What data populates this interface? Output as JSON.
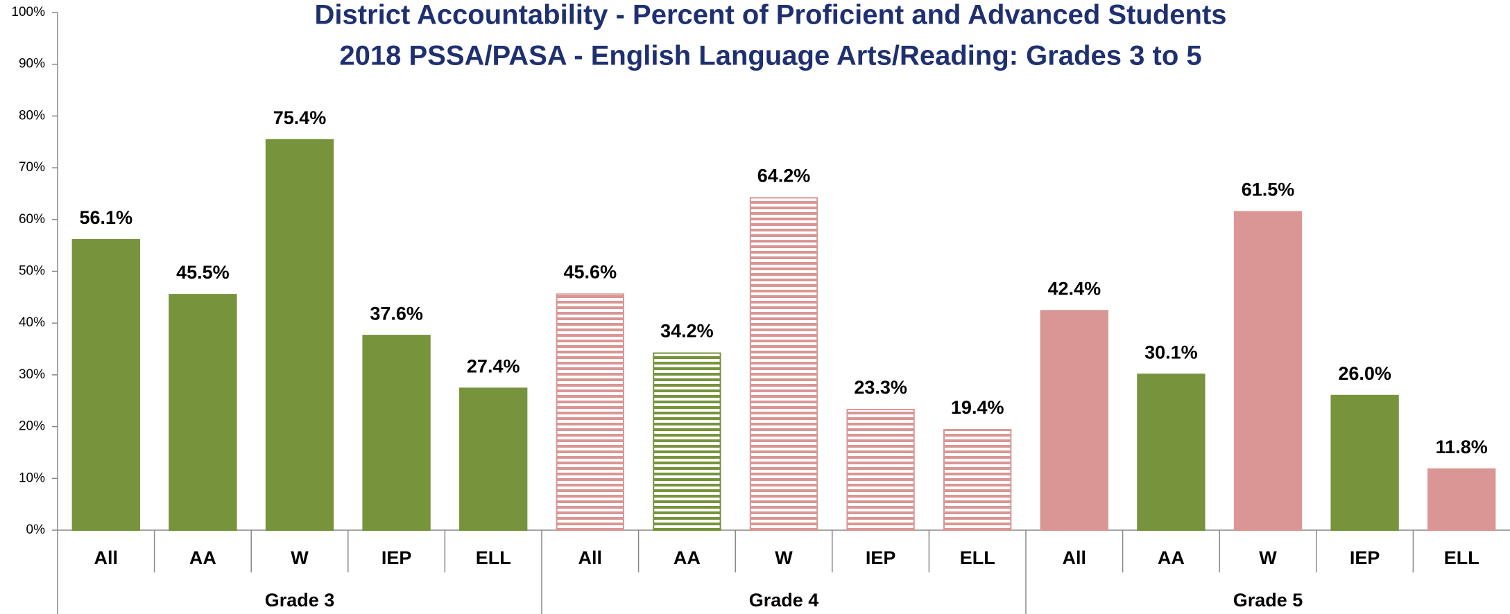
{
  "chart_data": {
    "type": "bar",
    "title": "District Accountability - Percent of Proficient and Advanced Students",
    "subtitle": "2018 PSSA/PASA -  English Language Arts/Reading: Grades 3 to 5",
    "groups": [
      "Grade 3",
      "Grade 4",
      "Grade 5"
    ],
    "categories": [
      "All",
      "AA",
      "W",
      "IEP",
      "ELL",
      "All",
      "AA",
      "W",
      "IEP",
      "ELL",
      "All",
      "AA",
      "W",
      "IEP",
      "ELL"
    ],
    "values": [
      56.1,
      45.5,
      75.4,
      37.6,
      27.4,
      45.6,
      34.2,
      64.2,
      23.3,
      19.4,
      42.4,
      30.1,
      61.5,
      26.0,
      11.8
    ],
    "value_labels": [
      "56.1%",
      "45.5%",
      "75.4%",
      "37.6%",
      "27.4%",
      "45.6%",
      "34.2%",
      "64.2%",
      "23.3%",
      "19.4%",
      "42.4%",
      "30.1%",
      "61.5%",
      "26.0%",
      "11.8%"
    ],
    "colors": [
      "#77933c",
      "#77933c",
      "#77933c",
      "#77933c",
      "#77933c",
      "#d99694",
      "#77933c",
      "#d99694",
      "#d99694",
      "#d99694",
      "#d99694",
      "#77933c",
      "#d99694",
      "#77933c",
      "#d99694"
    ],
    "fills": [
      "solid",
      "solid",
      "solid",
      "solid",
      "solid",
      "striped",
      "striped",
      "striped",
      "striped",
      "striped",
      "solid",
      "solid",
      "solid",
      "solid",
      "solid"
    ],
    "ylim": [
      0,
      100
    ],
    "yticks": [
      {
        "value": 0,
        "label": "0%"
      },
      {
        "value": 10,
        "label": "10%"
      },
      {
        "value": 20,
        "label": "20%"
      },
      {
        "value": 30,
        "label": "30%"
      },
      {
        "value": 40,
        "label": "40%"
      },
      {
        "value": 50,
        "label": "50%"
      },
      {
        "value": 60,
        "label": "60%"
      },
      {
        "value": 70,
        "label": "70%"
      },
      {
        "value": 80,
        "label": "80%"
      },
      {
        "value": 90,
        "label": "90%"
      },
      {
        "value": 100,
        "label": "100%"
      }
    ],
    "grid": false
  }
}
